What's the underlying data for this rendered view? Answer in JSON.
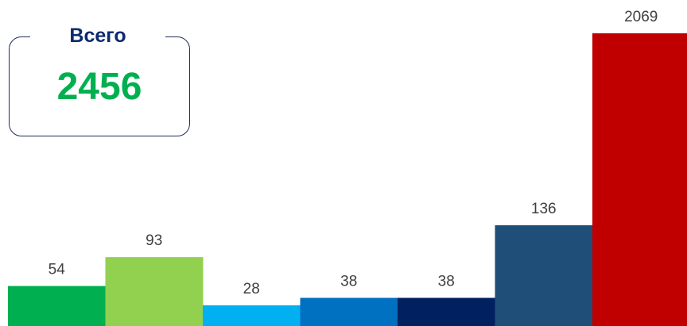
{
  "total": {
    "label": "Всего",
    "value": "2456"
  },
  "chart_data": {
    "type": "bar",
    "values": [
      54,
      93,
      28,
      38,
      38,
      136,
      2069
    ],
    "colors": [
      "#00b050",
      "#92d050",
      "#00b0f0",
      "#0070c0",
      "#002060",
      "#1f4e79",
      "#c00000"
    ],
    "ylim": [
      0,
      2069
    ],
    "grid": false,
    "data_labels": true
  }
}
